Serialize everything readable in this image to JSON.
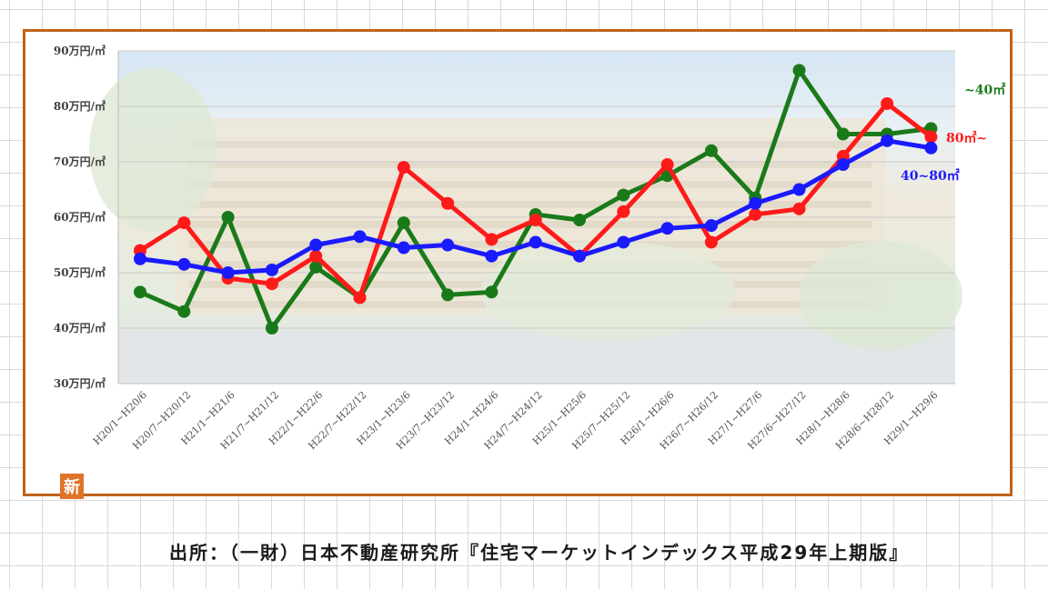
{
  "chart_data": {
    "type": "line",
    "categories": [
      "H20/1~H20/6",
      "H20/7~H20/12",
      "H21/1~H21/6",
      "H21/7~H21/12",
      "H22/1~H22/6",
      "H22/7~H22/12",
      "H23/1~H23/6",
      "H23/7~H23/12",
      "H24/1~H24/6",
      "H24/7~H24/12",
      "H25/1~H25/6",
      "H25/7~H25/12",
      "H26/1~H26/6",
      "H26/7~H26/12",
      "H27/1~H27/6",
      "H27/6~H27/12",
      "H28/1~H28/6",
      "H28/6~H28/12",
      "H29/1~H29/6"
    ],
    "y_tick_labels": [
      "30万円/㎡",
      "40万円/㎡",
      "50万円/㎡",
      "60万円/㎡",
      "70万円/㎡",
      "80万円/㎡",
      "90万円/㎡"
    ],
    "ylim": [
      30,
      90
    ],
    "grid": true,
    "series": [
      {
        "name": "~40㎡",
        "color": "#1a7a1a",
        "values": [
          46.5,
          43.0,
          60.0,
          40.0,
          51.0,
          45.5,
          59.0,
          46.0,
          46.5,
          60.5,
          59.5,
          64.0,
          67.5,
          72.0,
          63.5,
          86.5,
          75.0,
          75.0,
          76.0
        ]
      },
      {
        "name": "80㎡~",
        "color": "#ff1a1a",
        "values": [
          54.0,
          59.0,
          49.0,
          48.0,
          53.0,
          45.5,
          69.0,
          62.5,
          56.0,
          59.5,
          53.0,
          61.0,
          69.5,
          55.5,
          60.5,
          61.5,
          71.0,
          80.5,
          74.5
        ]
      },
      {
        "name": "40~80㎡",
        "color": "#1a1aff",
        "values": [
          52.5,
          51.5,
          50.0,
          50.5,
          55.0,
          56.5,
          54.5,
          55.0,
          53.0,
          55.5,
          53.0,
          55.5,
          58.0,
          58.5,
          62.5,
          65.0,
          69.5,
          73.8,
          72.5
        ]
      }
    ]
  },
  "badge": "新",
  "source": "出所：（一財）日本不動産研究所『住宅マーケットインデックス平成29年上期版』"
}
